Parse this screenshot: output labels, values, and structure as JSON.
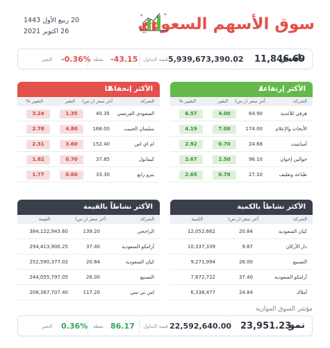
{
  "header": {
    "title": "سوق الأسهم السعودي",
    "date_hijri": "20 ربيع الأول 1443",
    "date_greg": "26 اكتوبر 2021"
  },
  "tasi": {
    "name": "تاسي",
    "value": "11,846.69",
    "turnover_label": "قيمة التداول",
    "turnover": "5,939,673,390.02",
    "points_label": "نقطة",
    "points": "-43.15",
    "change_label": "التغير",
    "change_pct": "-0.36%"
  },
  "gainers": {
    "title": "الأكثر إرتفاعا",
    "columns": [
      "الشركة",
      "آخر سعر (ر.س)",
      "التغير",
      "التغيير %"
    ],
    "rows": [
      {
        "name": "هرفي للأغذية",
        "price": "64.90",
        "change": "4.00",
        "pct": "6.57"
      },
      {
        "name": "الأبحاث والإعلام",
        "price": "174.00",
        "change": "7.00",
        "pct": "4.19"
      },
      {
        "name": "أميانتيت",
        "price": "24.68",
        "change": "0.70",
        "pct": "2.92"
      },
      {
        "name": "خوالين إخوان",
        "price": "96.10",
        "change": "2.50",
        "pct": "2.67"
      },
      {
        "name": "طباعة وتغليف",
        "price": "27.10",
        "change": "0.70",
        "pct": "2.65"
      }
    ]
  },
  "losers": {
    "title": "الأكثر إنخفاضا",
    "columns": [
      "الشركة",
      "آخر سعر (ر.س)",
      "التغير",
      "التغيير %"
    ],
    "rows": [
      {
        "name": "السعودي الفرنسي",
        "price": "40.35",
        "change": "1.35",
        "pct": "3.24"
      },
      {
        "name": "سليمان الحبيب",
        "price": "168.00",
        "change": "4.80",
        "pct": "2.78"
      },
      {
        "name": "ام اي اس",
        "price": "152.40",
        "change": "3.60",
        "pct": "2.31"
      },
      {
        "name": "كيمانول",
        "price": "37.85",
        "change": "0.70",
        "pct": "1.82"
      },
      {
        "name": "بترو رابغ",
        "price": "33.30",
        "change": "0.60",
        "pct": "1.77"
      }
    ]
  },
  "volume": {
    "title": "الأكثر نشاطاً بالكمية",
    "columns": [
      "الشركة",
      "آخر سعر (ر.س)",
      "الكمية"
    ],
    "rows": [
      {
        "name": "كيان السعودية",
        "price": "20.84",
        "qty": "12,052,662"
      },
      {
        "name": "دار الأركان",
        "price": "9.87",
        "qty": "10,337,339"
      },
      {
        "name": "التصنيع",
        "price": "26.00",
        "qty": "9,271,994"
      },
      {
        "name": "أرامكو السعودية",
        "price": "37.40",
        "qty": "7,872,722"
      },
      {
        "name": "أملاك",
        "price": "24.84",
        "qty": "6,338,477"
      }
    ]
  },
  "value": {
    "title": "الأكثر نشاطاً بالقيمة",
    "columns": [
      "الشركة",
      "آخر سعر (ر.س)",
      "القيمة"
    ],
    "rows": [
      {
        "name": "الراجحي",
        "price": "139.20",
        "qty": "384,122,943.60"
      },
      {
        "name": "أرامكو السعودية",
        "price": "37.40",
        "qty": "294,413,900.25"
      },
      {
        "name": "كيان السعودية",
        "price": "20.84",
        "qty": "252,590,377.02"
      },
      {
        "name": "التصنيع",
        "price": "26.00",
        "qty": "244,055,797.05"
      },
      {
        "name": "اس تي سي",
        "price": "117.20",
        "qty": "208,367,707.40"
      }
    ]
  },
  "parallel": {
    "title": "مؤشر السوق الموازية",
    "name": "نمو",
    "value": "23,951.23",
    "turnover_label": "قيمة التداول",
    "turnover": "22,592,640.00",
    "points_label": "نقطة",
    "points": "86.17",
    "change_label": "التغير",
    "change_pct": "0.36%"
  },
  "colors": {
    "green": "#64b94a",
    "red": "#e4504b",
    "dark": "#3a3f4b"
  }
}
